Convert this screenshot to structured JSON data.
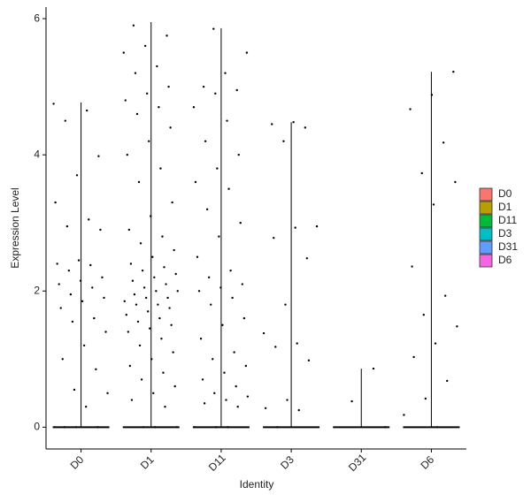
{
  "chart_data": {
    "type": "violin",
    "x_label": "Identity",
    "y_label": "Expression Level",
    "categories": [
      "D0",
      "D1",
      "D11",
      "D3",
      "D31",
      "D6"
    ],
    "ylim": [
      -0.32,
      6.17
    ],
    "yticks": [
      0,
      2,
      4,
      6
    ],
    "series": [
      {
        "name": "D0",
        "color": "#F8766D",
        "max": 4.77,
        "points": [
          4.75,
          4.65,
          4.5,
          3.98,
          3.7,
          3.3,
          3.05,
          2.95,
          2.9,
          2.45,
          2.4,
          2.38,
          2.3,
          2.2,
          2.15,
          2.1,
          2.05,
          1.95,
          1.9,
          1.85,
          1.75,
          1.6,
          1.55,
          1.4,
          1.2,
          1.0,
          0.85,
          0.55,
          0.5,
          0.3,
          0,
          0,
          0,
          0
        ]
      },
      {
        "name": "D1",
        "color": "#B79F00",
        "max": 5.95,
        "points": [
          5.9,
          5.75,
          5.6,
          5.5,
          5.3,
          5.2,
          5.0,
          4.9,
          4.8,
          4.7,
          4.6,
          4.4,
          4.2,
          4.0,
          3.8,
          3.6,
          3.3,
          3.1,
          2.9,
          2.8,
          2.7,
          2.6,
          2.5,
          2.4,
          2.35,
          2.3,
          2.25,
          2.2,
          2.15,
          2.1,
          2.05,
          2.0,
          2.0,
          1.95,
          1.9,
          1.9,
          1.85,
          1.8,
          1.8,
          1.75,
          1.7,
          1.65,
          1.6,
          1.55,
          1.5,
          1.45,
          1.4,
          1.3,
          1.2,
          1.1,
          1.0,
          0.9,
          0.8,
          0.7,
          0.6,
          0.5,
          0.4,
          0.3,
          0,
          0,
          0
        ]
      },
      {
        "name": "D11",
        "color": "#00BA38",
        "max": 5.86,
        "points": [
          5.85,
          5.5,
          5.2,
          5.0,
          4.95,
          4.9,
          4.7,
          4.5,
          4.2,
          4.0,
          3.8,
          3.6,
          3.5,
          3.2,
          3.0,
          2.8,
          2.5,
          2.3,
          2.2,
          2.1,
          2.05,
          2.0,
          1.9,
          1.8,
          1.6,
          1.5,
          1.3,
          1.1,
          1.0,
          0.9,
          0.8,
          0.7,
          0.6,
          0.5,
          0.45,
          0.4,
          0.35,
          0.3,
          0,
          0,
          0
        ]
      },
      {
        "name": "D3",
        "color": "#00BFC4",
        "max": 4.48,
        "points": [
          4.48,
          4.45,
          4.4,
          4.2,
          2.95,
          2.93,
          2.78,
          2.48,
          1.8,
          1.38,
          1.23,
          1.18,
          0.98,
          0.4,
          0.28,
          0.25,
          0
        ]
      },
      {
        "name": "D31",
        "color": "#619CFF",
        "max": 0.86,
        "points": [
          0.86,
          0.38,
          0
        ]
      },
      {
        "name": "D6",
        "color": "#F564E3",
        "max": 5.22,
        "points": [
          5.22,
          4.88,
          4.67,
          4.18,
          3.73,
          3.6,
          3.27,
          2.36,
          1.93,
          1.65,
          1.48,
          1.23,
          1.03,
          0.68,
          0.42,
          0.18,
          0
        ]
      }
    ]
  }
}
